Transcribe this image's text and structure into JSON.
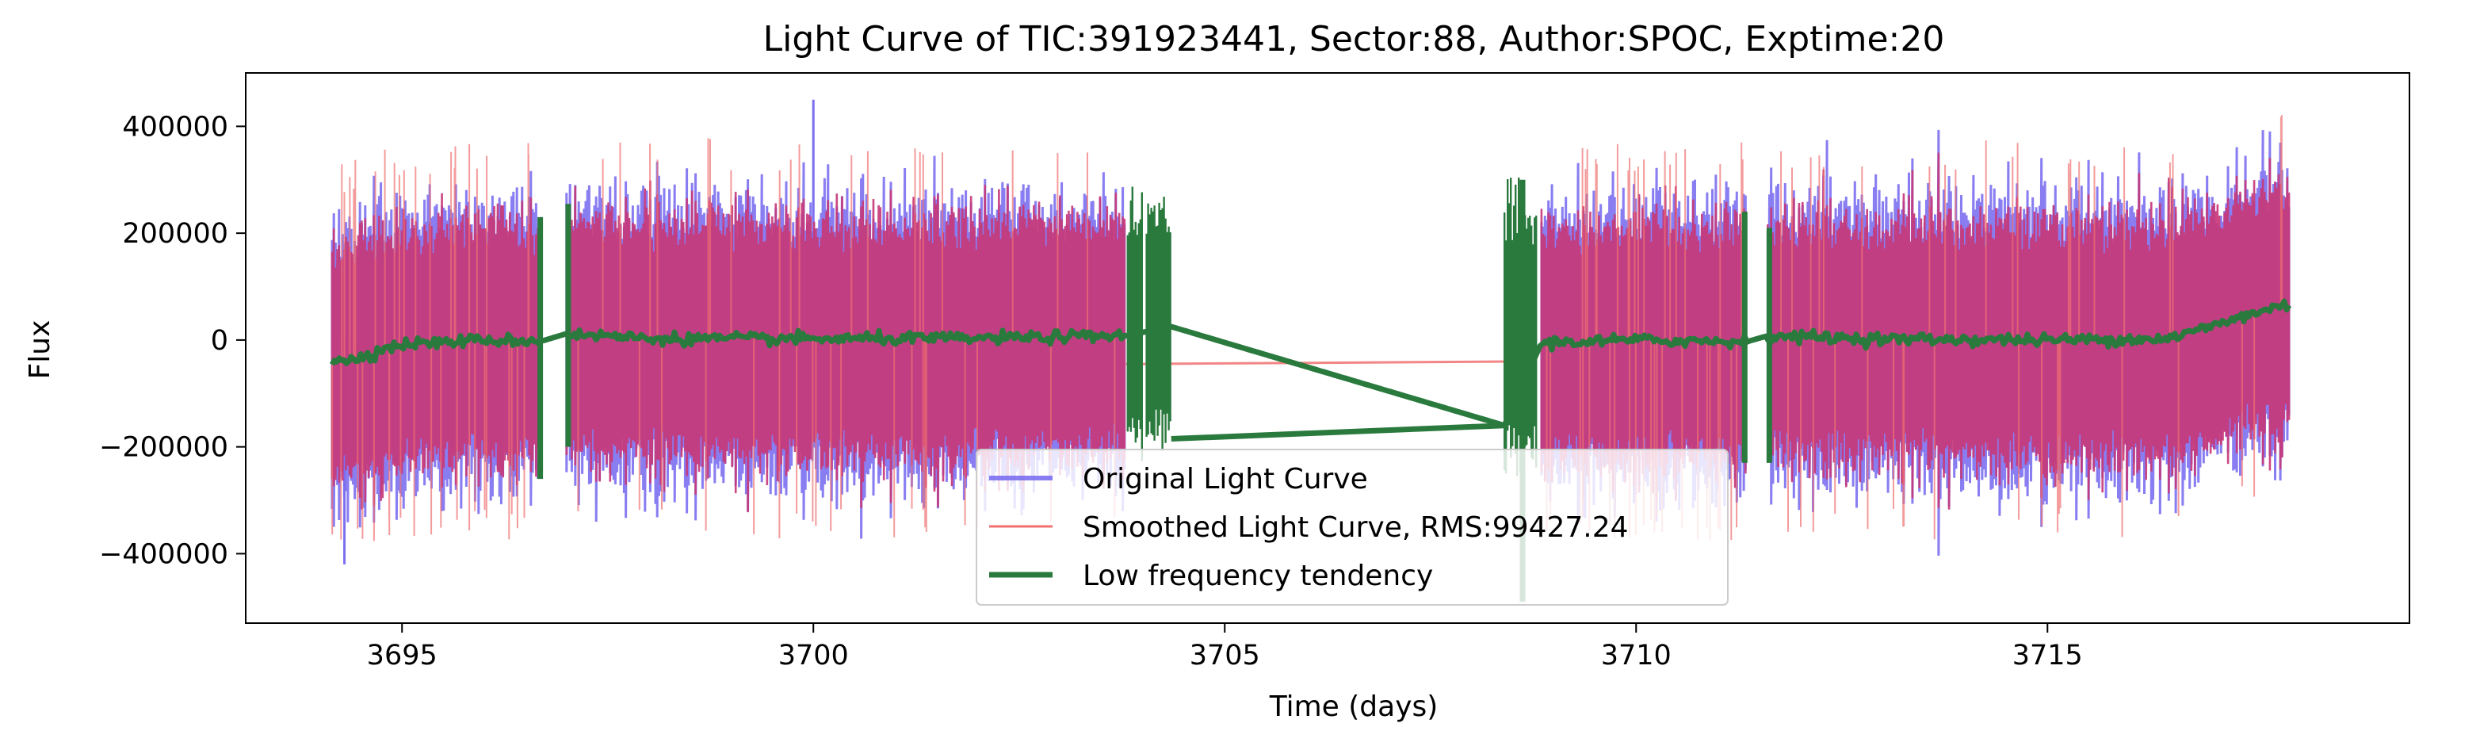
{
  "chart_data": {
    "type": "line",
    "title": "Light Curve of TIC:391923441, Sector:88, Author:SPOC, Exptime:20",
    "xlabel": "Time (days)",
    "ylabel": "Flux",
    "xlim": [
      3693.1,
      3719.4
    ],
    "ylim": [
      -530000,
      500000
    ],
    "xticks": [
      3695,
      3700,
      3705,
      3710,
      3715
    ],
    "xtick_labels": [
      "3695",
      "3700",
      "3705",
      "3710",
      "3715"
    ],
    "yticks": [
      -400000,
      -200000,
      0,
      200000,
      400000
    ],
    "ytick_labels": [
      "−400000",
      "−200000",
      "0",
      "200000",
      "400000"
    ],
    "legend_position": "lower center",
    "segments": [
      {
        "start": 3694.15,
        "end": 3696.7
      },
      {
        "start": 3697.0,
        "end": 3703.8
      },
      {
        "start": 3703.85,
        "end": 3704.35
      },
      {
        "start": 3708.4,
        "end": 3708.75
      },
      {
        "start": 3708.85,
        "end": 3711.35
      },
      {
        "start": 3711.6,
        "end": 3717.95
      }
    ],
    "series": [
      {
        "name": "Original Light Curve",
        "color": "#7b6ff0",
        "amplitude_approx": 300000,
        "extremes": {
          "max": 450000,
          "min": -420000
        }
      },
      {
        "name": "Smoothed Light Curve, RMS:99427.24",
        "color": "#f07070",
        "rms": 99427.24,
        "gap_bridge": {
          "x": [
            3703.8,
            3708.75
          ],
          "y": [
            -45000,
            -40000
          ]
        }
      },
      {
        "name": "Low frequency tendency",
        "color": "#2a7a3e",
        "trend": {
          "x": [
            3694.15,
            3694.5,
            3695,
            3696,
            3696.7,
            3697.0,
            3698,
            3700,
            3702,
            3703.8,
            3704.35,
            3708.4,
            3708.85,
            3710,
            3711.35,
            3711.6,
            3713,
            3715,
            3716.5,
            3717.5,
            3717.95
          ],
          "y": [
            -45000,
            -30000,
            -8000,
            0,
            -2000,
            12000,
            3000,
            2000,
            3000,
            8000,
            25000,
            -160000,
            -5000,
            0,
            -3000,
            8000,
            2000,
            0,
            3000,
            50000,
            68000
          ]
        },
        "gap_bridge": {
          "x": [
            3704.35,
            3708.4
          ],
          "y": [
            -185000,
            -160000
          ]
        },
        "spikes": [
          {
            "x": 3696.68,
            "y_min": -260000,
            "y_max": 230000
          },
          {
            "x": 3697.02,
            "y_min": -200000,
            "y_max": 255000
          },
          {
            "x": 3711.32,
            "y_min": -230000,
            "y_max": 240000
          },
          {
            "x": 3711.62,
            "y_min": -230000,
            "y_max": 210000
          },
          {
            "x": 3708.62,
            "y_min": -490000,
            "y_max": 300000
          }
        ]
      }
    ]
  }
}
